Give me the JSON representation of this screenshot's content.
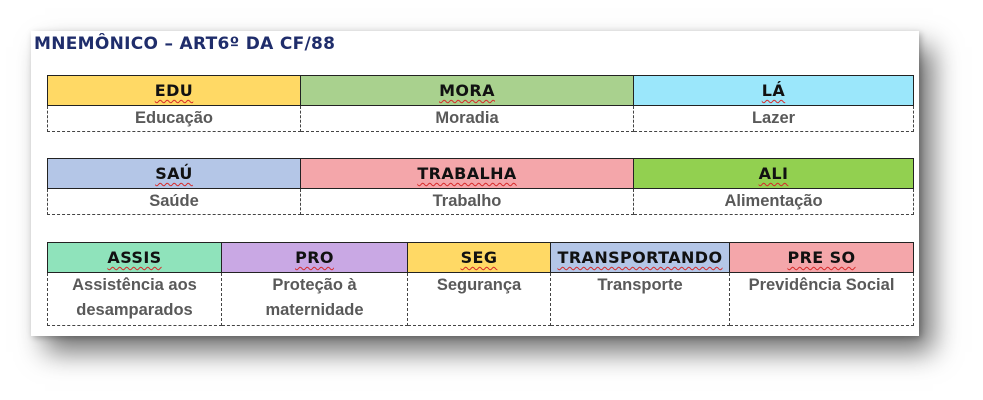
{
  "title": "MNEMÔNICO – ART6º DA CF/88",
  "rows": [
    [
      {
        "abbr": "EDU",
        "full": "Educação",
        "color": "#ffd965"
      },
      {
        "abbr": "MORA",
        "full": "Moradia",
        "color": "#a9d18e"
      },
      {
        "abbr": "LÁ",
        "full": "Lazer",
        "color": "#9be7fb"
      }
    ],
    [
      {
        "abbr": "SAÚ",
        "full": "Saúde",
        "color": "#b4c6e7"
      },
      {
        "abbr": "TRABALHA",
        "full": "Trabalho",
        "color": "#f4a6aa"
      },
      {
        "abbr": "ALI",
        "full": "Alimentação",
        "color": "#92d050"
      }
    ],
    [
      {
        "abbr": "ASSIS",
        "full": "Assistência aos desamparados",
        "color": "#8fe3bb"
      },
      {
        "abbr": "PRO",
        "full": "Proteção à maternidade",
        "color": "#c9a8e4"
      },
      {
        "abbr": "SEG",
        "full": "Segurança",
        "color": "#ffd965"
      },
      {
        "abbr": "TRANSPORTANDO",
        "full": "Transporte",
        "color": "#b4c6e7"
      },
      {
        "abbr": "PRE SO",
        "full": "Previdência Social",
        "color": "#f4a6aa"
      }
    ]
  ]
}
